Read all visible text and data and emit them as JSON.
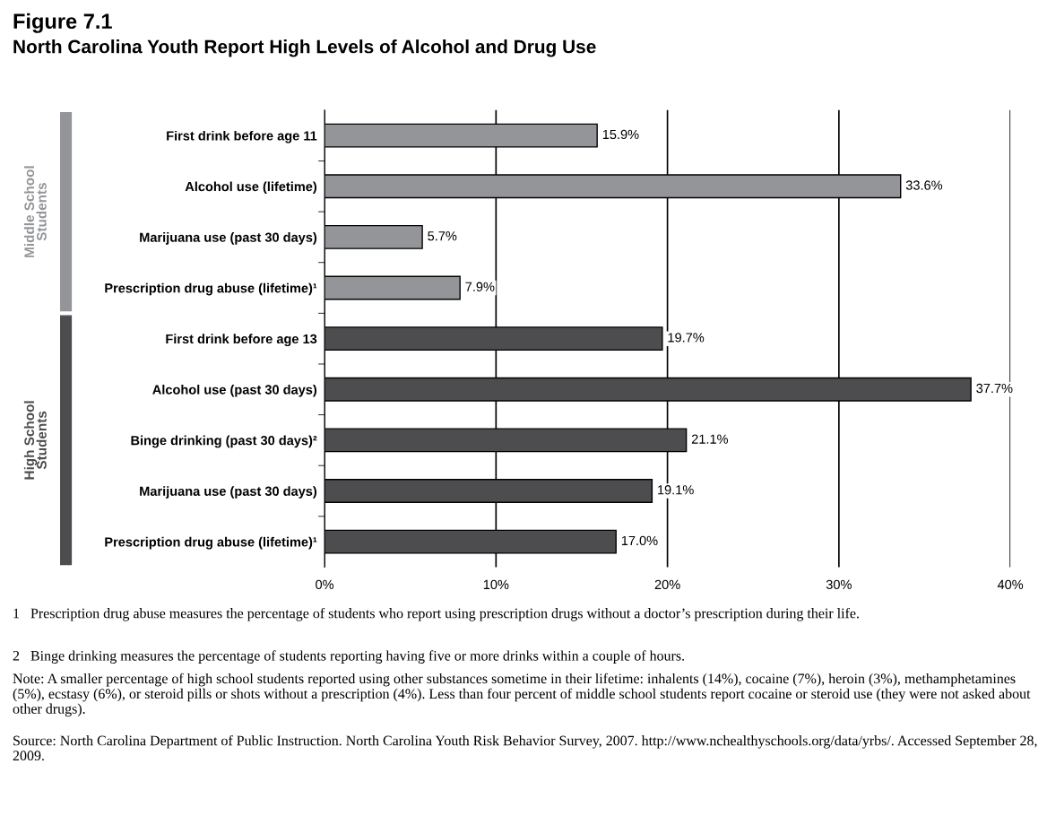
{
  "chart_data": {
    "type": "bar",
    "orientation": "horizontal",
    "title": "Figure 7.1",
    "subtitle": "North Carolina Youth Report High Levels of Alcohol and Drug Use",
    "categories": [
      "First drink before age 11",
      "Alcohol use (lifetime)",
      "Marijuana use (past 30 days)",
      "Prescription drug abuse (lifetime)¹",
      "First drink before age 13",
      "Alcohol use (past 30 days)",
      "Binge drinking (past 30 days)²",
      "Marijuana use (past 30 days)",
      "Prescription drug abuse (lifetime)¹"
    ],
    "series": [
      {
        "name": "Middle School Students",
        "color": "#939598",
        "values": [
          15.9,
          33.6,
          5.7,
          7.9,
          null,
          null,
          null,
          null,
          null
        ],
        "value_labels": [
          "15.9%",
          "33.6%",
          "5.7%",
          "7.9%",
          null,
          null,
          null,
          null,
          null
        ]
      },
      {
        "name": "High School Students",
        "color": "#4d4d4f",
        "values": [
          null,
          null,
          null,
          null,
          19.7,
          37.7,
          21.1,
          19.1,
          17.0
        ],
        "value_labels": [
          null,
          null,
          null,
          null,
          "19.7%",
          "37.7%",
          "21.1%",
          "19.1%",
          "17.0%"
        ]
      }
    ],
    "xlim": [
      0,
      40
    ],
    "xticks": [
      {
        "value": 0,
        "label": "0%"
      },
      {
        "value": 10,
        "label": "10%"
      },
      {
        "value": 20,
        "label": "20%"
      },
      {
        "value": 30,
        "label": "30%"
      },
      {
        "value": 40,
        "label": "40%"
      }
    ],
    "grid": "x",
    "legend": "left",
    "annotations": [
      "1   Prescription drug abuse measures the percentage of students who report using prescription drugs without a doctor’s prescription during their life.",
      "2   Binge drinking measures the percentage of students reporting having five or more drinks within a couple of hours.",
      "Note: A smaller percentage of high school students reported using other substances sometime in their lifetime: inhalents (14%), cocaine (7%), heroin (3%), methamphetamines (5%), ecstasy (6%), or steroid pills or shots without a prescription (4%). Less than four percent of middle school students report cocaine or steroid use (they were not asked about other drugs).",
      "Source: North Carolina Department of Public Instruction. North Carolina Youth Risk Behavior Survey, 2007. http://www.nchealthyschools.org/data/yrbs/. Accessed September 28, 2009."
    ]
  }
}
